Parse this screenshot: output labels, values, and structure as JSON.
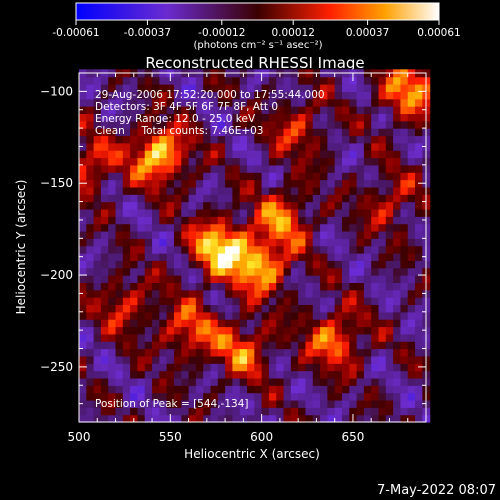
{
  "chart_data": {
    "type": "heatmap",
    "title": "Reconstructed RHESSI Image",
    "xlabel": "Heliocentric X (arcsec)",
    "ylabel": "Heliocentric Y (arcsec)",
    "xlim": [
      500,
      690
    ],
    "ylim": [
      -280,
      -90
    ],
    "x_ticks": [
      500,
      550,
      600,
      650
    ],
    "y_ticks": [
      -100,
      -150,
      -200,
      -250
    ],
    "colorbar": {
      "ticks": [
        "-0.00061",
        "-0.00037",
        "-0.00012",
        "0.00012",
        "0.00037",
        "0.00061"
      ],
      "range": [
        -0.00061,
        0.00061
      ],
      "units_label": "(photons cm⁻² s⁻¹ asec⁻²)"
    },
    "info_lines": [
      "29-Aug-2006 17:52:20.000 to 17:55:44.000",
      "Detectors: 3F 4F 5F 6F 7F 8F, Att 0",
      "Energy Range: 12.0 - 25.0 keV",
      "Clean     Total counts: 7.46E+03"
    ],
    "peak_label": "Position of Peak = [544,-134]",
    "peak_position": [
      544,
      -134
    ],
    "sources": [
      {
        "x": 577,
        "y": -185,
        "peak": 0.00061
      },
      {
        "x": 600,
        "y": -195,
        "peak": 0.00052
      },
      {
        "x": 544,
        "y": -134,
        "peak": 0.00061
      },
      {
        "x": 640,
        "y": -235,
        "peak": 0.00045
      },
      {
        "x": 612,
        "y": -168,
        "peak": 0.0004
      },
      {
        "x": 590,
        "y": -240,
        "peak": 0.0004
      },
      {
        "x": 560,
        "y": -230,
        "peak": 0.00038
      },
      {
        "x": 680,
        "y": -100,
        "peak": 0.00048
      },
      {
        "x": 505,
        "y": -140,
        "peak": 0.00036
      },
      {
        "x": 620,
        "y": -120,
        "peak": 0.0003
      },
      {
        "x": 525,
        "y": -215,
        "peak": 0.0003
      },
      {
        "x": 670,
        "y": -160,
        "peak": 0.00028
      }
    ]
  },
  "footer_timestamp": "7-May-2022 08:07"
}
